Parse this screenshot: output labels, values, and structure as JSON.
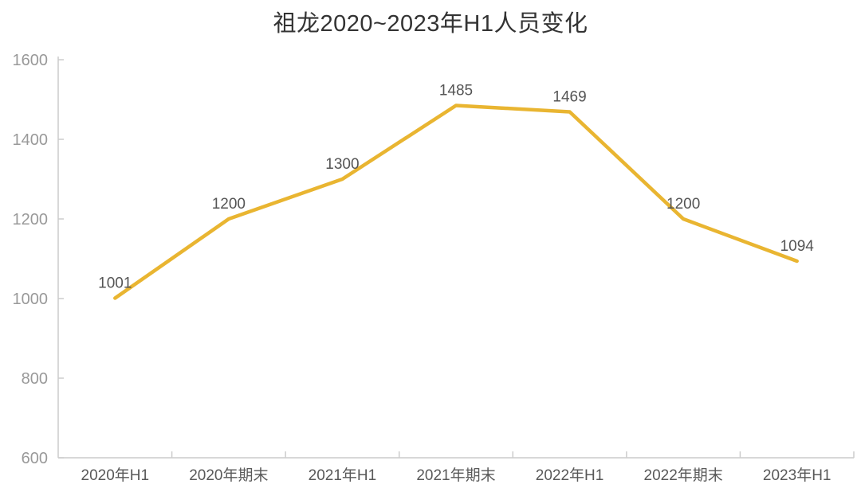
{
  "chart_data": {
    "type": "line",
    "title": "祖龙2020~2023年H1人员变化",
    "categories": [
      "2020年H1",
      "2020年期末",
      "2021年H1",
      "2021年期末",
      "2022年H1",
      "2022年期末",
      "2023年H1"
    ],
    "values": [
      1001,
      1200,
      1300,
      1485,
      1469,
      1200,
      1094
    ],
    "y_ticks": [
      600,
      800,
      1000,
      1200,
      1400,
      1600
    ],
    "ylim": [
      600,
      1600
    ],
    "xlabel": "",
    "ylabel": "",
    "grid": false,
    "legend": "none",
    "data_labels_visible": true,
    "colors": {
      "line": "#E9B531",
      "axis": "#CCCCCC",
      "title_text": "#333333",
      "x_tick_text": "#595959",
      "y_tick_text": "#999999",
      "data_label_text": "#555555",
      "background": "#FFFFFF"
    }
  }
}
